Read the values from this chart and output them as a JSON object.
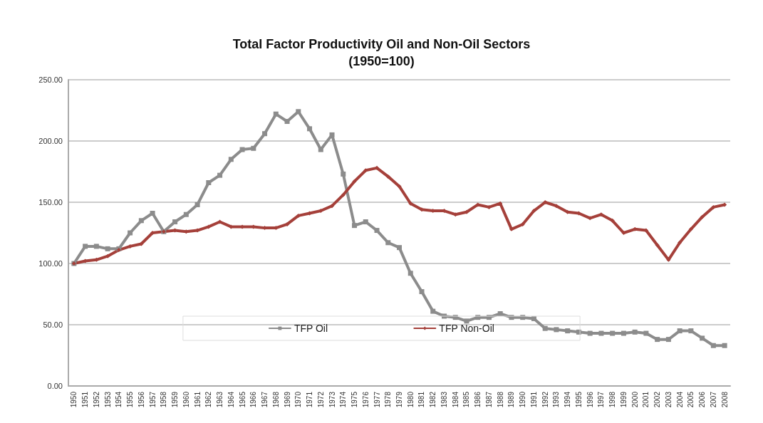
{
  "chart_data": {
    "type": "line",
    "title": "Total Factor Productivity Oil and Non-Oil Sectors",
    "subtitle": "(1950=100)",
    "categories": [
      "1950",
      "1951",
      "1952",
      "1953",
      "1954",
      "1955",
      "1956",
      "1957",
      "1958",
      "1959",
      "1960",
      "1961",
      "1962",
      "1963",
      "1964",
      "1965",
      "1966",
      "1967",
      "1968",
      "1969",
      "1970",
      "1971",
      "1972",
      "1973",
      "1974",
      "1975",
      "1976",
      "1977",
      "1978",
      "1979",
      "1980",
      "1981",
      "1982",
      "1983",
      "1984",
      "1985",
      "1986",
      "1987",
      "1988",
      "1989",
      "1990",
      "1991",
      "1992",
      "1993",
      "1994",
      "1995",
      "1996",
      "1997",
      "1998",
      "1999",
      "2000",
      "2001",
      "2002",
      "2003",
      "2004",
      "2005",
      "2006",
      "2007",
      "2008"
    ],
    "series": [
      {
        "name": "TFP Oil",
        "color": "#8c8c8c",
        "marker": "square",
        "values": [
          100,
          114,
          114,
          112,
          112,
          125,
          135,
          141,
          126,
          134,
          140,
          148,
          166,
          172,
          185,
          193,
          194,
          206,
          222,
          216,
          224,
          210,
          193,
          205,
          173,
          131,
          134,
          127,
          117,
          113,
          92,
          77,
          61,
          57,
          56,
          53,
          56,
          56,
          59,
          56,
          56,
          55,
          47,
          46,
          45,
          44,
          43,
          43,
          43,
          43,
          44,
          43,
          38,
          38,
          45,
          45,
          39,
          33,
          33
        ]
      },
      {
        "name": "TFP Non-Oil",
        "color": "#a5403a",
        "marker": "diamond",
        "values": [
          100,
          102,
          103,
          106,
          111,
          114,
          116,
          125,
          126,
          127,
          126,
          127,
          130,
          134,
          130,
          130,
          130,
          129,
          129,
          132,
          139,
          141,
          143,
          147,
          156,
          167,
          176,
          178,
          171,
          163,
          149,
          144,
          143,
          143,
          140,
          142,
          148,
          146,
          149,
          128,
          132,
          143,
          150,
          147,
          142,
          141,
          137,
          140,
          135,
          125,
          128,
          127,
          115,
          103,
          117,
          128,
          138,
          146,
          148
        ]
      }
    ],
    "ylim": [
      0,
      250
    ],
    "yticks": [
      {
        "value": 0,
        "label": "0.00"
      },
      {
        "value": 50,
        "label": "50.00"
      },
      {
        "value": 100,
        "label": "100.00"
      },
      {
        "value": 150,
        "label": "150.00"
      },
      {
        "value": 200,
        "label": "200.00"
      },
      {
        "value": 250,
        "label": "250.00"
      }
    ],
    "grid": "y",
    "legend": "bottom",
    "line_style": "solid"
  }
}
